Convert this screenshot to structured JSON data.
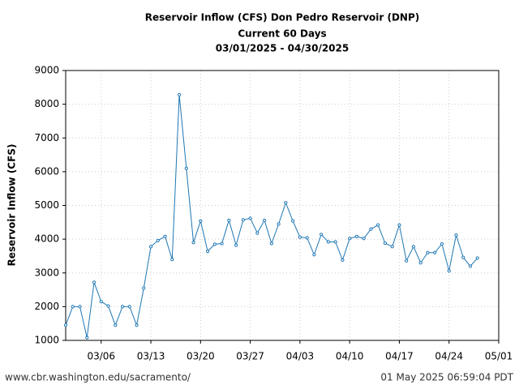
{
  "chart_data": {
    "type": "line",
    "title": "Reservoir Inflow (CFS) Don Pedro Reservoir (DNP)",
    "subtitle": "Current 60 Days",
    "date_range": "03/01/2025 - 04/30/2025",
    "y_label": "Reservoir Inflow (CFS)",
    "x": [
      "03/01",
      "03/02",
      "03/03",
      "03/04",
      "03/05",
      "03/06",
      "03/07",
      "03/08",
      "03/09",
      "03/10",
      "03/11",
      "03/12",
      "03/13",
      "03/14",
      "03/15",
      "03/16",
      "03/17",
      "03/18",
      "03/19",
      "03/20",
      "03/21",
      "03/22",
      "03/23",
      "03/24",
      "03/25",
      "03/26",
      "03/27",
      "03/28",
      "03/29",
      "03/30",
      "03/31",
      "04/01",
      "04/02",
      "04/03",
      "04/04",
      "04/05",
      "04/06",
      "04/07",
      "04/08",
      "04/09",
      "04/10",
      "04/11",
      "04/12",
      "04/13",
      "04/14",
      "04/15",
      "04/16",
      "04/17",
      "04/18",
      "04/19",
      "04/20",
      "04/21",
      "04/22",
      "04/23",
      "04/24",
      "04/25",
      "04/26",
      "04/27",
      "04/28"
    ],
    "series": [
      {
        "name": "Reservoir Inflow",
        "color": "#1f77b4",
        "values": [
          1450,
          2000,
          2000,
          1080,
          2720,
          2150,
          2020,
          1450,
          2000,
          2000,
          1450,
          2550,
          3780,
          3960,
          4080,
          3400,
          8280,
          6100,
          3900,
          4540,
          3640,
          3850,
          3870,
          4560,
          3820,
          4570,
          4620,
          4180,
          4560,
          3870,
          4450,
          5080,
          4540,
          4060,
          4040,
          3540,
          4140,
          3920,
          3920,
          3380,
          4020,
          4080,
          4020,
          4300,
          4420,
          3880,
          3780,
          4420,
          3360,
          3780,
          3300,
          3600,
          3600,
          3860,
          3060,
          4120,
          3460,
          3200,
          3440
        ]
      }
    ],
    "xlim": [
      "03/01",
      "05/01"
    ],
    "xticks": [
      "03/06",
      "03/13",
      "03/20",
      "03/27",
      "04/03",
      "04/10",
      "04/17",
      "04/24",
      "05/01"
    ],
    "ylim": [
      1000,
      9000
    ],
    "yticks": [
      1000,
      2000,
      3000,
      4000,
      5000,
      6000,
      7000,
      8000,
      9000
    ],
    "grid": true
  },
  "footer": {
    "source": "www.cbr.washington.edu/sacramento/",
    "timestamp": "01 May 2025 06:59:04 PDT"
  }
}
